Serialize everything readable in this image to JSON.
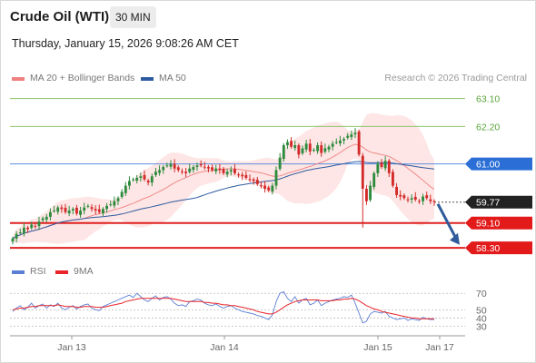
{
  "header": {
    "title": "Crude Oil (WTI)",
    "timeframe": "30 MIN",
    "timestamp": "Thursday, January 15, 2026 9:08:26 AM CET"
  },
  "legend": {
    "items": [
      {
        "label": "MA 20 + Bollinger Bands",
        "color": "#f08080"
      },
      {
        "label": "MA 50",
        "color": "#2e5aa0"
      }
    ],
    "copyright": "Research © 2026 Trading Central"
  },
  "rsi_legend": {
    "items": [
      {
        "label": "RSI",
        "color": "#5b7fd4"
      },
      {
        "label": "9MA",
        "color": "#e8242a"
      }
    ]
  },
  "colors": {
    "up": "#2e8b3e",
    "down": "#d42a2a",
    "resistance_line": "#8dc26a",
    "pivot_line": "#5b8fe0",
    "support_line": "#e02020",
    "pivot_tag": "#2b6fd6",
    "support_tag": "#e21a1a",
    "last_tag": "#222222",
    "arrow": "#2f5b9a",
    "bollinger_fill": "#fde2e0",
    "ma20": "#f08080",
    "ma50": "#2e5aa0",
    "rsi": "#5b7fd4",
    "rsi_ma": "#e8242a"
  },
  "chart_data": [
    {
      "type": "candlestick",
      "title": "Crude Oil (WTI)",
      "timeframe": "30 MIN",
      "x_ticks": [
        "Jan 13",
        "Jan 14",
        "Jan 15",
        "Jan 17"
      ],
      "ylim": [
        58.1,
        63.35
      ],
      "levels": [
        {
          "value": 63.1,
          "label": "63.10",
          "kind": "resistance",
          "style": "line"
        },
        {
          "value": 62.2,
          "label": "62.20",
          "kind": "resistance",
          "style": "line"
        },
        {
          "value": 61.0,
          "label": "61.00",
          "kind": "pivot",
          "style": "tag"
        },
        {
          "value": 59.77,
          "label": "59.77",
          "kind": "last",
          "style": "tag"
        },
        {
          "value": 59.1,
          "label": "59.10",
          "kind": "support",
          "style": "tag"
        },
        {
          "value": 58.3,
          "label": "58.30",
          "kind": "support",
          "style": "tag"
        }
      ],
      "closes": [
        58.6,
        58.75,
        58.8,
        58.95,
        58.9,
        59.05,
        59.0,
        59.15,
        59.25,
        59.3,
        59.45,
        59.5,
        59.6,
        59.55,
        59.45,
        59.5,
        59.55,
        59.4,
        59.5,
        59.6,
        59.65,
        59.55,
        59.5,
        59.45,
        59.55,
        59.65,
        59.7,
        59.8,
        59.9,
        60.1,
        60.3,
        60.45,
        60.5,
        60.55,
        60.6,
        60.5,
        60.4,
        60.6,
        60.75,
        60.8,
        60.9,
        60.95,
        61.0,
        60.85,
        60.8,
        60.75,
        60.7,
        60.85,
        60.9,
        60.95,
        60.95,
        60.9,
        60.85,
        60.8,
        60.85,
        60.8,
        60.7,
        60.75,
        60.8,
        60.7,
        60.65,
        60.6,
        60.55,
        60.5,
        60.45,
        60.35,
        60.3,
        60.2,
        60.15,
        60.3,
        60.8,
        61.2,
        61.6,
        61.7,
        61.55,
        61.6,
        61.3,
        61.5,
        61.65,
        61.4,
        61.45,
        61.6,
        61.35,
        61.5,
        61.55,
        61.65,
        61.7,
        61.75,
        61.8,
        61.9,
        61.95,
        62.0,
        61.3,
        60.2,
        59.8,
        60.3,
        60.7,
        61.0,
        60.9,
        61.1,
        60.7,
        60.3,
        60.0,
        59.95,
        59.9,
        59.85,
        59.9,
        59.85,
        59.8,
        59.95,
        59.9,
        59.8,
        59.77
      ],
      "rsi_ticks": [
        70,
        50,
        40,
        30
      ],
      "rsi_ylim": [
        25,
        78
      ],
      "rsi": [
        48,
        52,
        55,
        50,
        53,
        58,
        52,
        55,
        57,
        52,
        56,
        54,
        58,
        52,
        50,
        53,
        55,
        51,
        54,
        56,
        57,
        52,
        50,
        49,
        54,
        56,
        58,
        60,
        62,
        64,
        66,
        68,
        65,
        70,
        66,
        62,
        60,
        64,
        67,
        62,
        65,
        66,
        63,
        58,
        55,
        56,
        54,
        60,
        61,
        63,
        62,
        58,
        56,
        55,
        57,
        54,
        52,
        54,
        55,
        52,
        50,
        48,
        47,
        46,
        45,
        43,
        42,
        40,
        38,
        44,
        60,
        70,
        72,
        64,
        60,
        66,
        58,
        62,
        64,
        56,
        58,
        62,
        55,
        58,
        60,
        62,
        63,
        64,
        66,
        65,
        68,
        58,
        46,
        34,
        36,
        45,
        48,
        47,
        46,
        48,
        42,
        40,
        38,
        39,
        40,
        37,
        39,
        38,
        37,
        41,
        39,
        38,
        38
      ],
      "rsi_ma": [
        50,
        51,
        52,
        52,
        53,
        54,
        54,
        55,
        55,
        55,
        55,
        55,
        56,
        55,
        54,
        54,
        54,
        53,
        53,
        54,
        54,
        54,
        53,
        53,
        53,
        54,
        55,
        56,
        57,
        58,
        60,
        61,
        62,
        63,
        64,
        64,
        64,
        64,
        64,
        64,
        64,
        64,
        64,
        63,
        62,
        61,
        60,
        60,
        60,
        60,
        60,
        59,
        59,
        58,
        58,
        57,
        56,
        56,
        55,
        55,
        54,
        53,
        52,
        51,
        50,
        48,
        47,
        46,
        45,
        45,
        47,
        50,
        53,
        56,
        58,
        60,
        61,
        62,
        62,
        62,
        62,
        62,
        61,
        61,
        61,
        61,
        62,
        62,
        63,
        63,
        64,
        63,
        61,
        58,
        55,
        53,
        51,
        50,
        48,
        47,
        46,
        45,
        44,
        43,
        42,
        41,
        40,
        40,
        39,
        39,
        39,
        39,
        39
      ]
    }
  ]
}
